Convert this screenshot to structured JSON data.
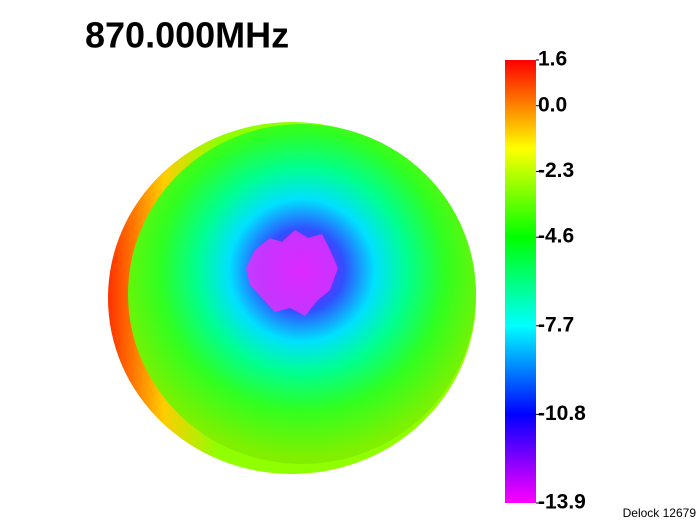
{
  "chart_data": {
    "type": "heatmap",
    "title": "870.000MHz",
    "colormap": [
      "#ff0000",
      "#ffff00",
      "#00ff00",
      "#00ffff",
      "#0000ff",
      "#ff00ff"
    ],
    "clim": [
      -13.9,
      1.6
    ],
    "cticks": [
      1.6,
      {
        "value": 0,
        "label": "0.0"
      },
      -2.3,
      -4.6,
      -7.7,
      -10.8,
      -13.9
    ],
    "watermark": "Delock 12679"
  }
}
